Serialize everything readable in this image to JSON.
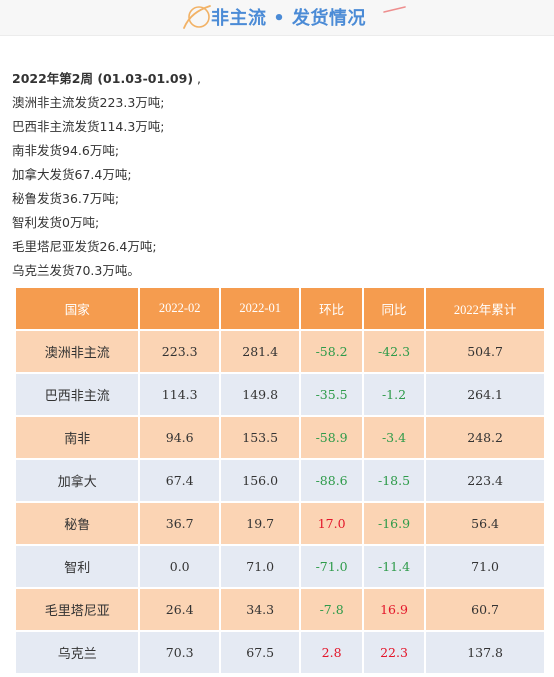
{
  "header": {
    "title": "非主流 • 发货情况"
  },
  "summary": {
    "week": "2022年第2周 (01.03-01.09)",
    "week_suffix": " ,",
    "lines": [
      "澳洲非主流发货223.3万吨;",
      "巴西非主流发货114.3万吨;",
      "南非发货94.6万吨;",
      "加拿大发货67.4万吨;",
      "秘鲁发货36.7万吨;",
      "智利发货0万吨;",
      "毛里塔尼亚发货26.4万吨;",
      "乌克兰发货70.3万吨。"
    ]
  },
  "table": {
    "headers": [
      "国家",
      "2022-02",
      "2022-01",
      "环比",
      "同比",
      "2022年累计"
    ],
    "rows": [
      [
        "澳洲非主流",
        "223.3",
        "281.4",
        "-58.2",
        "-42.3",
        "504.7"
      ],
      [
        "巴西非主流",
        "114.3",
        "149.8",
        "-35.5",
        "-1.2",
        "264.1"
      ],
      [
        "南非",
        "94.6",
        "153.5",
        "-58.9",
        "-3.4",
        "248.2"
      ],
      [
        "加拿大",
        "67.4",
        "156.0",
        "-88.6",
        "-18.5",
        "223.4"
      ],
      [
        "秘鲁",
        "36.7",
        "19.7",
        "17.0",
        "-16.9",
        "56.4"
      ],
      [
        "智利",
        "0.0",
        "71.0",
        "-71.0",
        "-11.4",
        "71.0"
      ],
      [
        "毛里塔尼亚",
        "26.4",
        "34.3",
        "-7.8",
        "16.9",
        "60.7"
      ],
      [
        "乌克兰",
        "70.3",
        "67.5",
        "2.8",
        "22.3",
        "137.8"
      ]
    ]
  },
  "colors": {
    "header_bg": "#f7f7f7",
    "title_blue": "#4b8bd6",
    "table_header_bg": "#f59c4f",
    "row_orange": "#fbd4b4",
    "row_blue": "#e5eaf3",
    "negative_green": "#2e9b4a",
    "positive_red": "#e3162a"
  }
}
